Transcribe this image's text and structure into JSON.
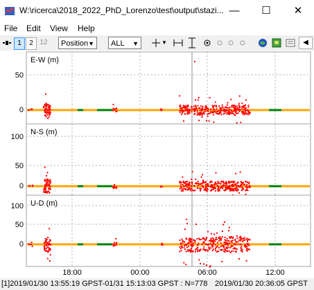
{
  "window": {
    "title": "W:\\ricerca\\2018_2022_PhD_Lorenzo\\test\\output\\stazi...",
    "minimize": "—",
    "maximize": "☐",
    "close": "✕"
  },
  "menu": {
    "file": "File",
    "edit": "Edit",
    "view": "View",
    "help": "Help"
  },
  "toolbar": {
    "btn1": "1",
    "btn2": "2",
    "btn12": "12",
    "plot_type": "Position",
    "quality": "ALL"
  },
  "colors": {
    "fix": "#ff0000",
    "float": "#ffa500",
    "dgps": "#008000"
  },
  "chart_data": [
    {
      "type": "scatter",
      "title": "E-W (m)",
      "y_ticks": [
        "50",
        "0"
      ],
      "x_ticks": [
        "18:00",
        "00:00",
        "06:00",
        "12:00"
      ]
    },
    {
      "type": "scatter",
      "title": "N-S (m)",
      "y_ticks": [
        "100",
        "50",
        "0"
      ],
      "x_ticks": [
        "18:00",
        "00:00",
        "06:00",
        "12:00"
      ]
    },
    {
      "type": "scatter",
      "title": "U-D (m)",
      "y_ticks": [
        "100",
        "50",
        "0"
      ],
      "x_ticks": [
        "18:00",
        "00:00",
        "06:00",
        "12:00"
      ]
    }
  ],
  "status": {
    "left": "[1]2019/01/30 13:55:19 GPST-01/31 15:13:03 GPST : N=778",
    "right": "2019/01/30 20:36:05 GPST"
  }
}
